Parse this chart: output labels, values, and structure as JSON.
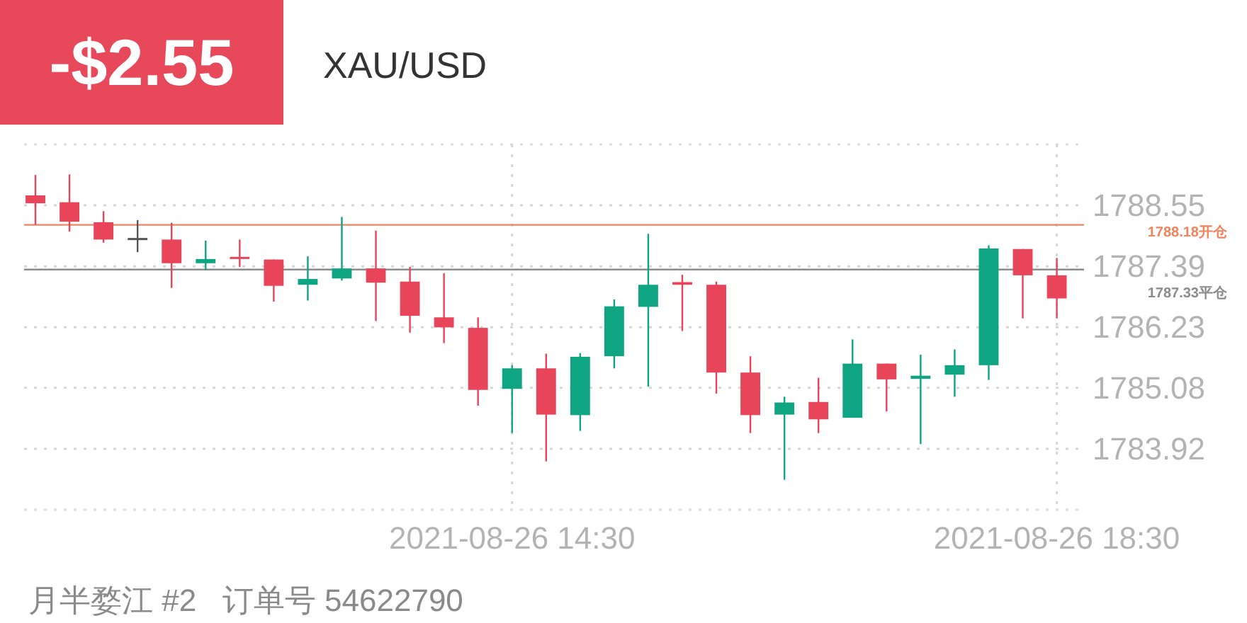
{
  "chart_data": {
    "type": "candlestick",
    "title": "XAU/USD",
    "subtitle": "-$2.55",
    "annotations": [
      "月半婺江 #2   订单号 54622790"
    ],
    "x": [
      "2021-08-26T11:00",
      "2021-08-26T11:15",
      "2021-08-26T11:30",
      "2021-08-26T11:45",
      "2021-08-26T12:00",
      "2021-08-26T12:15",
      "2021-08-26T12:30",
      "2021-08-26T12:45",
      "2021-08-26T13:00",
      "2021-08-26T13:15",
      "2021-08-26T13:30",
      "2021-08-26T13:45",
      "2021-08-26T14:00",
      "2021-08-26T14:15",
      "2021-08-26T14:30",
      "2021-08-26T14:45",
      "2021-08-26T15:00",
      "2021-08-26T15:15",
      "2021-08-26T15:30",
      "2021-08-26T15:45",
      "2021-08-26T16:00",
      "2021-08-26T16:15",
      "2021-08-26T16:30",
      "2021-08-26T16:45",
      "2021-08-26T17:00",
      "2021-08-26T17:15",
      "2021-08-26T17:30",
      "2021-08-26T17:45",
      "2021-08-26T18:00",
      "2021-08-26T18:15",
      "2021-08-26T18:30"
    ],
    "ohlc": [
      [
        1788.74,
        1789.13,
        1788.18,
        1788.59
      ],
      [
        1788.61,
        1789.14,
        1788.05,
        1788.24
      ],
      [
        1788.23,
        1788.44,
        1787.84,
        1787.9
      ],
      [
        1787.91,
        1788.27,
        1787.66,
        1787.91
      ],
      [
        1787.9,
        1788.22,
        1786.98,
        1787.45
      ],
      [
        1787.45,
        1787.88,
        1787.32,
        1787.53
      ],
      [
        1787.56,
        1787.9,
        1787.38,
        1787.54
      ],
      [
        1787.52,
        1787.52,
        1786.72,
        1787.02
      ],
      [
        1787.04,
        1787.58,
        1786.74,
        1787.15
      ],
      [
        1787.16,
        1788.33,
        1787.12,
        1787.35
      ],
      [
        1787.35,
        1788.07,
        1786.35,
        1787.08
      ],
      [
        1787.1,
        1787.38,
        1786.13,
        1786.45
      ],
      [
        1786.42,
        1787.26,
        1785.93,
        1786.23
      ],
      [
        1786.22,
        1786.42,
        1784.74,
        1785.04
      ],
      [
        1785.06,
        1785.51,
        1784.22,
        1785.45
      ],
      [
        1785.45,
        1785.73,
        1783.68,
        1784.57
      ],
      [
        1784.56,
        1785.74,
        1784.26,
        1785.67
      ],
      [
        1785.68,
        1786.76,
        1785.45,
        1786.63
      ],
      [
        1786.62,
        1788.01,
        1785.1,
        1787.04
      ],
      [
        1787.09,
        1787.23,
        1786.16,
        1787.04
      ],
      [
        1787.04,
        1787.1,
        1784.97,
        1785.37
      ],
      [
        1785.37,
        1785.68,
        1784.22,
        1784.56
      ],
      [
        1784.57,
        1784.91,
        1783.33,
        1784.8
      ],
      [
        1784.81,
        1785.27,
        1784.22,
        1784.48
      ],
      [
        1784.51,
        1786.0,
        1784.51,
        1785.54
      ],
      [
        1785.54,
        1785.54,
        1784.63,
        1785.24
      ],
      [
        1785.25,
        1785.71,
        1784.01,
        1785.31
      ],
      [
        1785.33,
        1785.81,
        1784.91,
        1785.51
      ],
      [
        1785.51,
        1787.79,
        1785.23,
        1787.73
      ],
      [
        1787.72,
        1787.72,
        1786.4,
        1787.22
      ],
      [
        1787.22,
        1787.55,
        1786.4,
        1786.78
      ]
    ],
    "colors": [
      "#e8455a",
      "#e8455a",
      "#e8455a",
      "#555555",
      "#e8455a",
      "#0fa583",
      "#e8455a",
      "#e8455a",
      "#0fa583",
      "#0fa583",
      "#e8455a",
      "#e8455a",
      "#e8455a",
      "#e8455a",
      "#0fa583",
      "#e8455a",
      "#0fa583",
      "#0fa583",
      "#0fa583",
      "#e8455a",
      "#e8455a",
      "#e8455a",
      "#0fa583",
      "#e8455a",
      "#0fa583",
      "#e8455a",
      "#0fa583",
      "#0fa583",
      "#0fa583",
      "#e8455a",
      "#e8455a"
    ],
    "ylim": [
      1782.76,
      1789.71
    ],
    "yticks": [
      1783.92,
      1785.08,
      1786.23,
      1787.39,
      1788.55
    ],
    "xlim": [
      "2021-08-26T10:55",
      "2021-08-26T18:42"
    ],
    "xticks": [
      {
        "value": "2021-08-26T14:30",
        "label": "2021-08-26 14:30"
      },
      {
        "value": "2021-08-26T18:30",
        "label": "2021-08-26 18:30"
      }
    ],
    "ref_lines": [
      {
        "axis": "y",
        "value": 1788.18,
        "label": "1788.18开仓",
        "color": "#f0845f"
      },
      {
        "axis": "y",
        "value": 1787.33,
        "label": "1787.33平仓",
        "color": "#8c8c8c"
      }
    ],
    "grid": true
  }
}
